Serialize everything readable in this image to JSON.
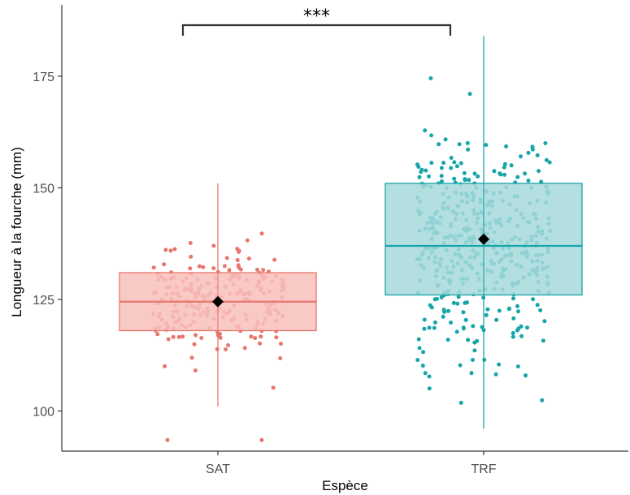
{
  "chart_data": {
    "type": "box",
    "xlabel": "Espèce",
    "ylabel": "Longueur à la fourche (mm)",
    "ylim": [
      91,
      191
    ],
    "y_ticks": [
      100,
      125,
      150,
      175
    ],
    "categories": [
      "SAT",
      "TRF"
    ],
    "grid": false,
    "jittered_points": true,
    "significance": {
      "from": "SAT",
      "to": "TRF",
      "label": "***"
    },
    "series": [
      {
        "category": "SAT",
        "color": "#e8766d",
        "fill": "#f8c0bc",
        "min": 101,
        "q1": 118,
        "median": 124.5,
        "q3": 131,
        "max": 151,
        "mean": 124.5,
        "outliers": [
          93.5,
          93.5
        ]
      },
      {
        "category": "TRF",
        "color": "#17a5a7",
        "fill": "#a6d9dc",
        "min": 96,
        "q1": 126,
        "median": 137,
        "q3": 151,
        "max": 184,
        "mean": 138.5,
        "outliers": []
      }
    ],
    "mean_marker": {
      "shape": "diamond",
      "color": "#000000"
    }
  }
}
